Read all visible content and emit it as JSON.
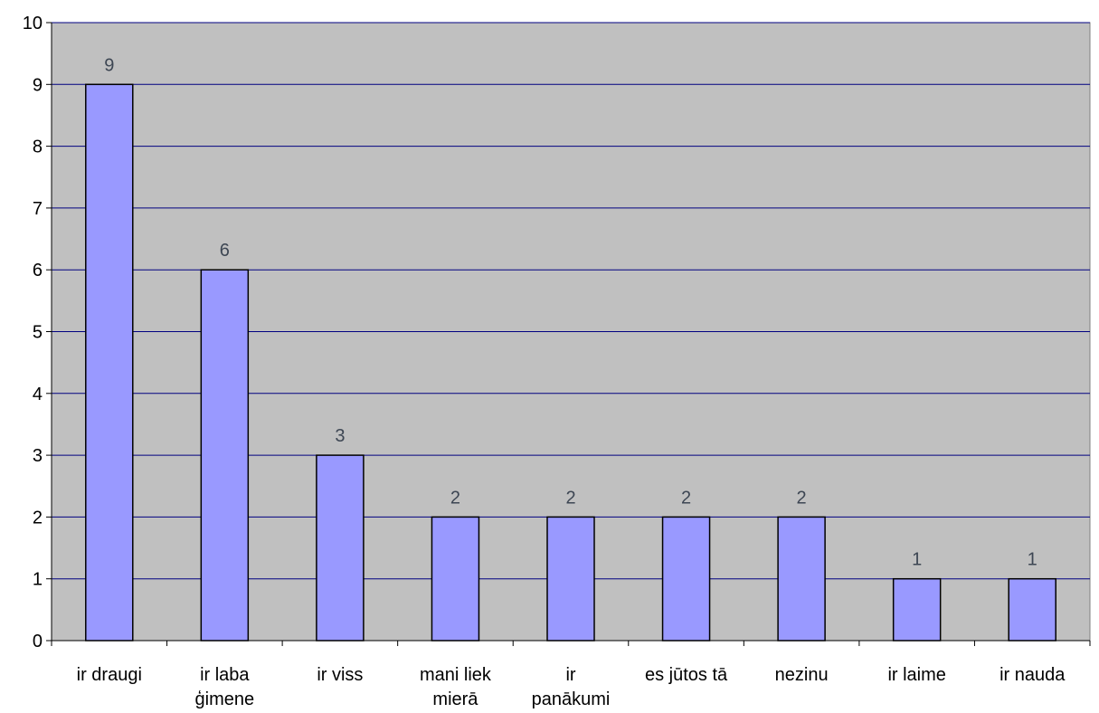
{
  "chart_data": {
    "type": "bar",
    "title": "",
    "xlabel": "",
    "ylabel": "",
    "categories": [
      [
        "ir draugi"
      ],
      [
        "ir laba",
        "ģimene"
      ],
      [
        "ir viss"
      ],
      [
        "mani liek",
        "mierā"
      ],
      [
        "ir",
        "panākumi"
      ],
      [
        "es jūtos tā"
      ],
      [
        "nezinu"
      ],
      [
        "ir laime"
      ],
      [
        "ir nauda"
      ]
    ],
    "values": [
      9,
      6,
      3,
      2,
      2,
      2,
      2,
      1,
      1
    ],
    "data_labels": [
      "9",
      "6",
      "3",
      "2",
      "2",
      "2",
      "2",
      "1",
      "1"
    ],
    "ylim": [
      0,
      10
    ],
    "yticks": [
      "0",
      "1",
      "2",
      "3",
      "4",
      "5",
      "6",
      "7",
      "8",
      "9",
      "10"
    ],
    "grid": true,
    "legend": "none",
    "colors": {
      "plot_background": "#c0c0c0",
      "bar_fill": "#9999ff",
      "bar_stroke": "#000000",
      "gridline": "#000080",
      "data_label": "#3d4653"
    }
  }
}
